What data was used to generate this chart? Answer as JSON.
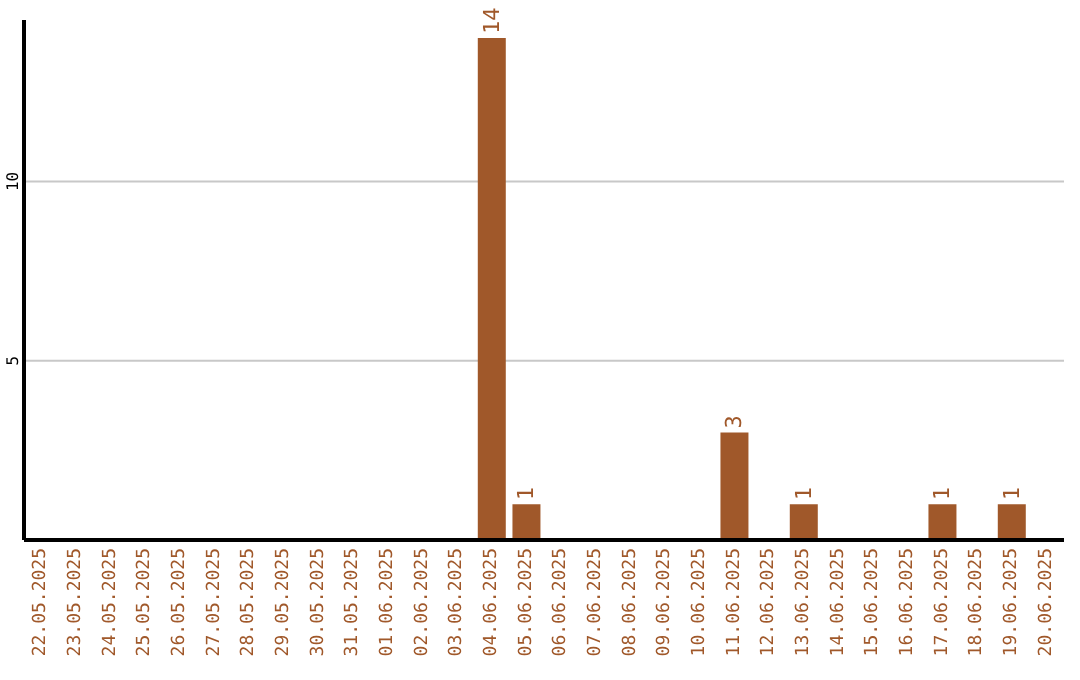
{
  "chart_data": {
    "type": "bar",
    "categories": [
      "22.05.2025",
      "23.05.2025",
      "24.05.2025",
      "25.05.2025",
      "26.05.2025",
      "27.05.2025",
      "28.05.2025",
      "29.05.2025",
      "30.05.2025",
      "31.05.2025",
      "01.06.2025",
      "02.06.2025",
      "03.06.2025",
      "04.06.2025",
      "05.06.2025",
      "06.06.2025",
      "07.06.2025",
      "08.06.2025",
      "09.06.2025",
      "10.06.2025",
      "11.06.2025",
      "12.06.2025",
      "13.06.2025",
      "14.06.2025",
      "15.06.2025",
      "16.06.2025",
      "17.06.2025",
      "18.06.2025",
      "19.06.2025",
      "20.06.2025"
    ],
    "values": [
      0,
      0,
      0,
      0,
      0,
      0,
      0,
      0,
      0,
      0,
      0,
      0,
      0,
      14,
      1,
      0,
      0,
      0,
      0,
      0,
      3,
      0,
      1,
      0,
      0,
      0,
      1,
      0,
      1,
      0
    ],
    "value_labels": [
      null,
      null,
      null,
      null,
      null,
      null,
      null,
      null,
      null,
      null,
      null,
      null,
      null,
      "14",
      "1",
      null,
      null,
      null,
      null,
      null,
      "3",
      null,
      "1",
      null,
      null,
      null,
      "1",
      null,
      "1",
      null
    ],
    "color": "#a0582a",
    "ylim": [
      0,
      14.5
    ],
    "yticks": [
      5,
      10
    ],
    "grid": "y"
  }
}
